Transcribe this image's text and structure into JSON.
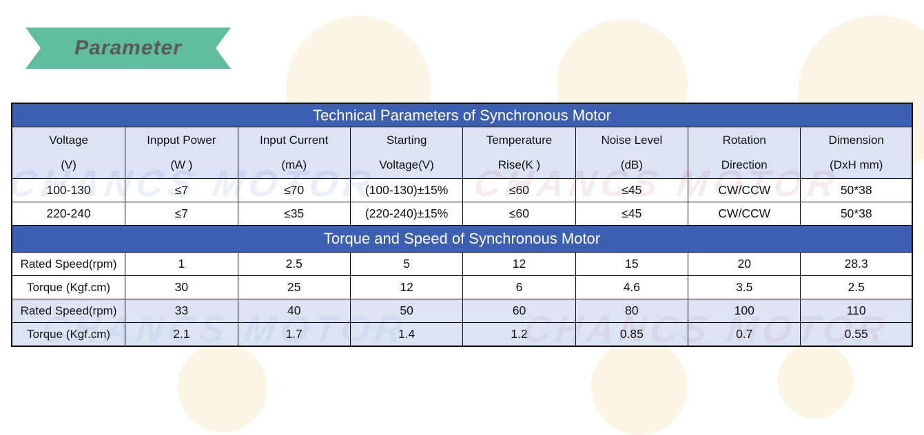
{
  "colors": {
    "ribbon_bg": "#5fbd9e",
    "ribbon_text": "#595959",
    "header_blue": "#3c5fb2",
    "cell_blue": "#dbe3f4",
    "wm_yellow": "#faf3dc"
  },
  "ribbon": {
    "label": "Parameter"
  },
  "watermark": {
    "text": "CHANCS MOTOR"
  },
  "table": {
    "section1": {
      "title": "Technical Parameters of Synchronous Motor",
      "columns": [
        {
          "line1": "Voltage",
          "line2": "(V)"
        },
        {
          "line1": "Inpput Power",
          "line2": "(W )"
        },
        {
          "line1": "Input Current",
          "line2": "(mA)"
        },
        {
          "line1": "Starting",
          "line2": "Voltage(V)"
        },
        {
          "line1": "Temperature",
          "line2": "Rise(K )"
        },
        {
          "line1": "Noise Level",
          "line2": "(dB)"
        },
        {
          "line1": "Rotation",
          "line2": "Direction"
        },
        {
          "line1": "Dimension",
          "line2": "(DxH mm)"
        }
      ],
      "rows": [
        [
          "100-130",
          "≤7",
          "≤70",
          "(100-130)±15%",
          "≤60",
          "≤45",
          "CW/CCW",
          "50*38"
        ],
        [
          "220-240",
          "≤7",
          "≤35",
          "(220-240)±15%",
          "≤60",
          "≤45",
          "CW/CCW",
          "50*38"
        ]
      ]
    },
    "section2": {
      "title": "Torque and Speed of Synchronous Motor",
      "rows": [
        {
          "label": "Rated Speed(rpm)",
          "shaded": false,
          "values": [
            "1",
            "2.5",
            "5",
            "12",
            "15",
            "20",
            "28.3"
          ]
        },
        {
          "label": "Torque (Kgf.cm)",
          "shaded": false,
          "values": [
            "30",
            "25",
            "12",
            "6",
            "4.6",
            "3.5",
            "2.5"
          ]
        },
        {
          "label": "Rated Speed(rpm)",
          "shaded": true,
          "values": [
            "33",
            "40",
            "50",
            "60",
            "80",
            "100",
            "110"
          ]
        },
        {
          "label": "Torque (Kgf.cm)",
          "shaded": true,
          "values": [
            "2.1",
            "1.7",
            "1.4",
            "1.2",
            "0.85",
            "0.7",
            "0.55"
          ]
        }
      ]
    }
  }
}
